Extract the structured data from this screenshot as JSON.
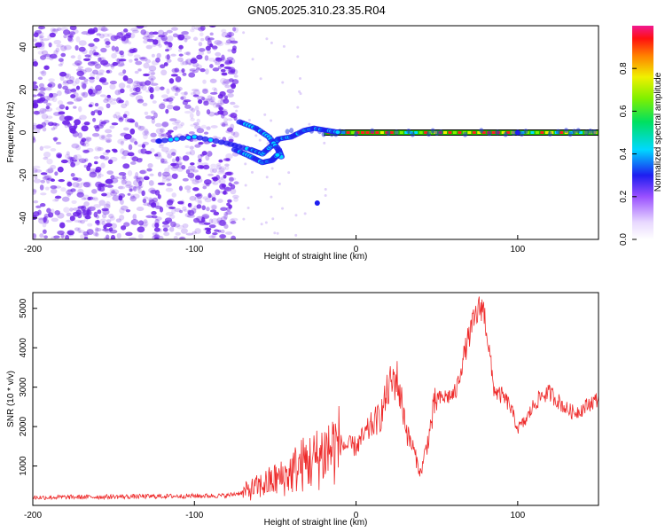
{
  "title": "GN05.2025.310.23.35.R04",
  "colors": {
    "purple": "#6a1ee8",
    "red": "#ee2a2a"
  },
  "chart_data": [
    {
      "type": "heatmap",
      "xlabel": "Height of straight line (km)",
      "ylabel": "Frequency (Hz)",
      "xlim": [
        -200,
        150
      ],
      "ylim": [
        -50,
        50
      ],
      "x_ticks": [
        "-200",
        "-100",
        "0",
        "100"
      ],
      "y_ticks": [
        "40",
        "20",
        "0",
        "-20",
        "-40"
      ],
      "colorbar": {
        "label": "Normalized spectral amplitude",
        "range": [
          0,
          1
        ],
        "ticks": [
          "0.0",
          "0.2",
          "0.4",
          "0.6",
          "0.8"
        ]
      },
      "features": {
        "noise_region_x": [
          -200,
          -74
        ],
        "carrier_line_y": 0,
        "carrier_x": [
          -20,
          150
        ]
      }
    },
    {
      "type": "line",
      "xlabel": "Height of straight line (km)",
      "ylabel": "SNR (10 * v/v)",
      "xlim": [
        -200,
        150
      ],
      "ylim": [
        0,
        5400
      ],
      "x_ticks": [
        "-200",
        "-100",
        "0",
        "100"
      ],
      "y_ticks": [
        "5000",
        "4000",
        "3000",
        "2000",
        "1000"
      ],
      "series": [
        {
          "x": [
            -200,
            -150,
            -100,
            -80,
            -70,
            -60,
            -50,
            -45,
            -40,
            -35,
            -30,
            -25,
            -20,
            -15,
            -10,
            -5,
            0,
            5,
            10,
            15,
            18,
            20,
            22,
            25,
            27,
            30,
            32,
            35,
            38,
            40,
            42,
            45,
            48,
            50,
            52,
            55,
            60,
            62,
            65,
            68,
            70,
            72,
            74,
            76,
            78,
            80,
            82,
            85,
            88,
            90,
            95,
            100,
            105,
            110,
            115,
            120,
            125,
            130,
            135,
            140,
            145,
            150
          ],
          "y": [
            200,
            220,
            240,
            250,
            330,
            480,
            650,
            700,
            850,
            1000,
            1100,
            1150,
            1350,
            1450,
            1550,
            1500,
            1500,
            1750,
            2050,
            2250,
            2650,
            2950,
            3100,
            3250,
            2850,
            2250,
            1750,
            1500,
            1050,
            800,
            1200,
            1750,
            2400,
            2750,
            2700,
            2750,
            2800,
            2900,
            3500,
            4000,
            4300,
            4550,
            4800,
            4950,
            5100,
            4700,
            4050,
            3000,
            2800,
            2800,
            2550,
            1950,
            2150,
            2550,
            2800,
            2850,
            2650,
            2450,
            2350,
            2450,
            2600,
            2700
          ]
        }
      ]
    }
  ]
}
